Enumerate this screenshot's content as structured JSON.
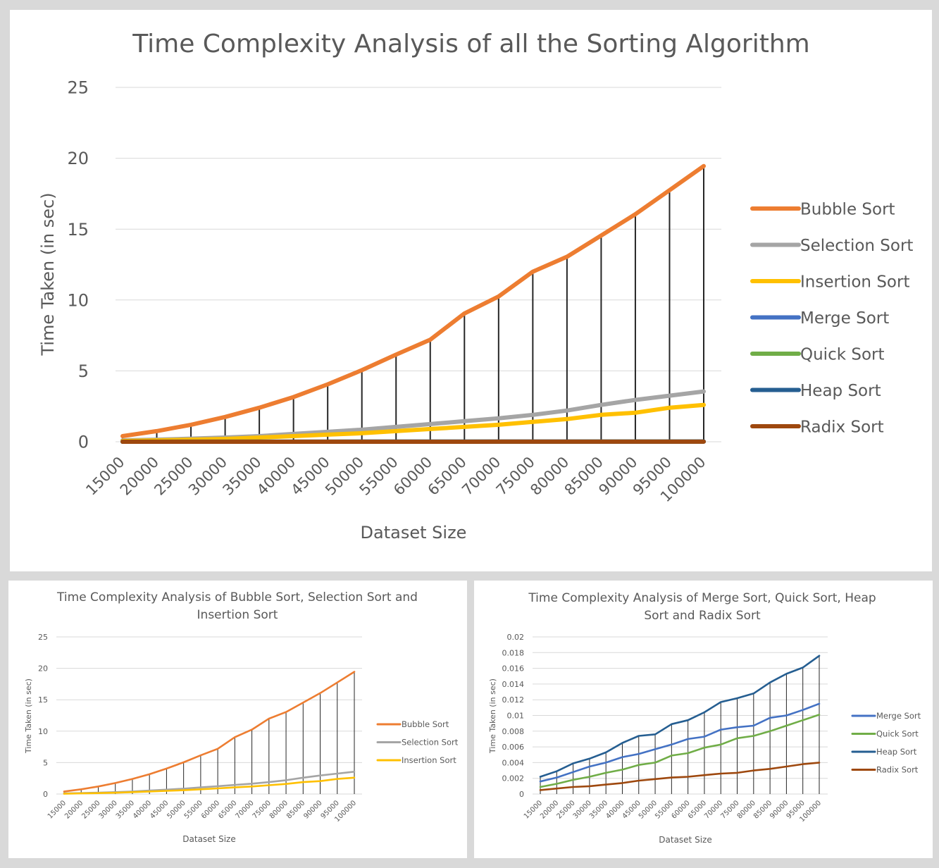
{
  "chart_data": [
    {
      "type": "line",
      "title": "Time Complexity Analysis of all the Sorting Algorithm",
      "xlabel": "Dataset Size",
      "ylabel": "Time Taken (in sec)",
      "ylim": [
        0,
        25
      ],
      "yticks": [
        "0",
        "5",
        "10",
        "15",
        "20",
        "25"
      ],
      "grid": true,
      "drop_lines": true,
      "legend_position": "right",
      "categories": [
        "15000",
        "20000",
        "25000",
        "30000",
        "35000",
        "40000",
        "45000",
        "50000",
        "55000",
        "60000",
        "65000",
        "70000",
        "75000",
        "80000",
        "85000",
        "90000",
        "95000",
        "100000"
      ],
      "series": [
        {
          "name": "Bubble Sort",
          "color": "#ed7d31",
          "values": [
            0.4,
            0.75,
            1.2,
            1.75,
            2.4,
            3.15,
            4.05,
            5.05,
            6.15,
            7.2,
            9.05,
            10.25,
            12.0,
            13.05,
            14.55,
            16.05,
            17.75,
            19.45
          ]
        },
        {
          "name": "Selection Sort",
          "color": "#a5a5a5",
          "values": [
            0.1,
            0.15,
            0.22,
            0.3,
            0.4,
            0.55,
            0.7,
            0.85,
            1.05,
            1.25,
            1.45,
            1.65,
            1.9,
            2.2,
            2.6,
            2.95,
            3.25,
            3.55
          ]
        },
        {
          "name": "Insertion  Sort",
          "color": "#ffc000",
          "values": [
            0.05,
            0.1,
            0.15,
            0.2,
            0.3,
            0.4,
            0.5,
            0.6,
            0.75,
            0.9,
            1.05,
            1.2,
            1.4,
            1.6,
            1.9,
            2.05,
            2.4,
            2.6
          ]
        },
        {
          "name": "Merge Sort",
          "color": "#4472c4",
          "values": [
            0.0016,
            0.0021,
            0.0028,
            0.0035,
            0.004,
            0.0047,
            0.0051,
            0.0057,
            0.0063,
            0.007,
            0.0073,
            0.0082,
            0.0085,
            0.0087,
            0.0097,
            0.01,
            0.0107,
            0.0115
          ]
        },
        {
          "name": "Quick  Sort",
          "color": "#70ad47",
          "values": [
            0.0009,
            0.0013,
            0.0018,
            0.0022,
            0.0027,
            0.0031,
            0.0037,
            0.004,
            0.0049,
            0.0052,
            0.0059,
            0.0063,
            0.0071,
            0.0074,
            0.008,
            0.0087,
            0.0094,
            0.0101
          ]
        },
        {
          "name": "Heap  Sort",
          "color": "#255e91",
          "values": [
            0.0022,
            0.0029,
            0.0039,
            0.0045,
            0.0053,
            0.0065,
            0.0074,
            0.0076,
            0.0089,
            0.0094,
            0.0104,
            0.0117,
            0.0122,
            0.0128,
            0.0142,
            0.0153,
            0.0161,
            0.0176
          ]
        },
        {
          "name": "Radix Sort",
          "color": "#9e480e",
          "values": [
            0.0005,
            0.0007,
            0.0009,
            0.001,
            0.0012,
            0.0014,
            0.0017,
            0.0019,
            0.0021,
            0.0022,
            0.0024,
            0.0026,
            0.0027,
            0.003,
            0.0032,
            0.0035,
            0.0038,
            0.004
          ]
        }
      ]
    },
    {
      "type": "line",
      "title": "Time Complexity Analysis of Bubble Sort, Selection Sort and Insertion Sort",
      "xlabel": "Dataset Size",
      "ylabel": "Time Taken (in sec)",
      "ylim": [
        0,
        25
      ],
      "yticks": [
        "0",
        "5",
        "10",
        "15",
        "20",
        "25"
      ],
      "grid": true,
      "drop_lines": true,
      "legend_position": "right",
      "categories": [
        "15000",
        "20000",
        "25000",
        "30000",
        "35000",
        "40000",
        "45000",
        "50000",
        "55000",
        "60000",
        "65000",
        "70000",
        "75000",
        "80000",
        "85000",
        "90000",
        "95000",
        "100000"
      ],
      "series": [
        {
          "name": "Bubble Sort",
          "color": "#ed7d31",
          "values": [
            0.4,
            0.75,
            1.2,
            1.75,
            2.4,
            3.15,
            4.05,
            5.05,
            6.15,
            7.2,
            9.05,
            10.25,
            12.0,
            13.05,
            14.55,
            16.05,
            17.75,
            19.45
          ]
        },
        {
          "name": "Selection Sort",
          "color": "#a5a5a5",
          "values": [
            0.1,
            0.15,
            0.22,
            0.3,
            0.4,
            0.55,
            0.7,
            0.85,
            1.05,
            1.25,
            1.45,
            1.65,
            1.9,
            2.2,
            2.6,
            2.95,
            3.25,
            3.55
          ]
        },
        {
          "name": "Insertion  Sort",
          "color": "#ffc000",
          "values": [
            0.05,
            0.1,
            0.15,
            0.2,
            0.3,
            0.4,
            0.5,
            0.6,
            0.75,
            0.9,
            1.05,
            1.2,
            1.4,
            1.6,
            1.9,
            2.05,
            2.4,
            2.6
          ]
        }
      ]
    },
    {
      "type": "line",
      "title": "Time Complexity Analysis of Merge Sort, Quick Sort, Heap Sort and Radix Sort",
      "xlabel": "Dataset Size",
      "ylabel": "Time Taken (in sec)",
      "ylim": [
        0,
        0.02
      ],
      "yticks": [
        "0",
        "0.002",
        "0.004",
        "0.006",
        "0.008",
        "0.01",
        "0.012",
        "0.014",
        "0.016",
        "0.018",
        "0.02"
      ],
      "grid": true,
      "drop_lines": true,
      "legend_position": "right",
      "categories": [
        "15000",
        "20000",
        "25000",
        "30000",
        "35000",
        "40000",
        "45000",
        "50000",
        "55000",
        "60000",
        "65000",
        "70000",
        "75000",
        "80000",
        "85000",
        "90000",
        "95000",
        "100000"
      ],
      "series": [
        {
          "name": "Merge Sort",
          "color": "#4472c4",
          "values": [
            0.0016,
            0.0021,
            0.0028,
            0.0035,
            0.004,
            0.0047,
            0.0051,
            0.0057,
            0.0063,
            0.007,
            0.0073,
            0.0082,
            0.0085,
            0.0087,
            0.0097,
            0.01,
            0.0107,
            0.0115
          ]
        },
        {
          "name": "Quick  Sort",
          "color": "#70ad47",
          "values": [
            0.0009,
            0.0013,
            0.0018,
            0.0022,
            0.0027,
            0.0031,
            0.0037,
            0.004,
            0.0049,
            0.0052,
            0.0059,
            0.0063,
            0.0071,
            0.0074,
            0.008,
            0.0087,
            0.0094,
            0.0101
          ]
        },
        {
          "name": "Heap  Sort",
          "color": "#255e91",
          "values": [
            0.0022,
            0.0029,
            0.0039,
            0.0045,
            0.0053,
            0.0065,
            0.0074,
            0.0076,
            0.0089,
            0.0094,
            0.0104,
            0.0117,
            0.0122,
            0.0128,
            0.0142,
            0.0153,
            0.0161,
            0.0176
          ]
        },
        {
          "name": "Radix Sort",
          "color": "#9e480e",
          "values": [
            0.0005,
            0.0007,
            0.0009,
            0.001,
            0.0012,
            0.0014,
            0.0017,
            0.0019,
            0.0021,
            0.0022,
            0.0024,
            0.0026,
            0.0027,
            0.003,
            0.0032,
            0.0035,
            0.0038,
            0.004
          ]
        }
      ]
    }
  ]
}
